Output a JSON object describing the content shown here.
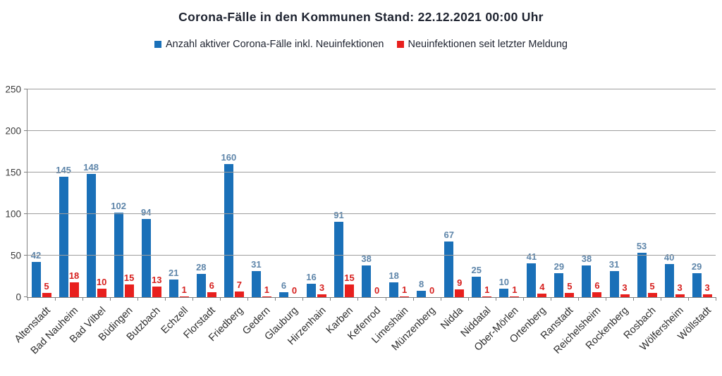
{
  "title": "Corona-Fälle in den Kommunen Stand: 22.12.2021 00:00 Uhr",
  "colors": {
    "active_cases_bar": "#1a70b8",
    "active_cases_label": "#5f86aa",
    "new_infections_bar": "#e8201e",
    "new_infections_label": "#d6201e",
    "gridline": "#9e9e9e",
    "axis": "#808080",
    "title_text": "#1e2330"
  },
  "chart_data": {
    "type": "bar",
    "title": "Corona-Fälle in den Kommunen Stand: 22.12.2021 00:00 Uhr",
    "xlabel": "",
    "ylabel": "",
    "ylim": [
      0,
      250
    ],
    "yticks": [
      0,
      50,
      100,
      150,
      200,
      250
    ],
    "grid": true,
    "legend_position": "top",
    "categories": [
      "Altenstadt",
      "Bad Nauheim",
      "Bad Vilbel",
      "Büdingen",
      "Butzbach",
      "Echzell",
      "Florstadt",
      "Friedberg",
      "Gedern",
      "Glauburg",
      "Hirzenhain",
      "Karben",
      "Kefenrod",
      "Limeshain",
      "Münzenberg",
      "Nidda",
      "Niddatal",
      "Ober-Mörlen",
      "Ortenberg",
      "Ranstadt",
      "Reichelsheim",
      "Rockenberg",
      "Rosbach",
      "Wölfersheim",
      "Wöllstadt"
    ],
    "series": [
      {
        "name": "Anzahl aktiver Corona-Fälle inkl. Neuinfektionen",
        "color": "#1a70b8",
        "label_color": "#5f86aa",
        "values": [
          42,
          145,
          148,
          102,
          94,
          21,
          28,
          160,
          31,
          6,
          16,
          91,
          38,
          18,
          8,
          67,
          25,
          10,
          41,
          29,
          38,
          31,
          53,
          40,
          29
        ]
      },
      {
        "name": "Neuinfektionen seit letzter Meldung",
        "color": "#e8201e",
        "label_color": "#d6201e",
        "values": [
          5,
          18,
          10,
          15,
          13,
          1,
          6,
          7,
          1,
          0,
          3,
          15,
          0,
          1,
          0,
          9,
          1,
          1,
          4,
          5,
          6,
          3,
          5,
          3,
          3
        ]
      }
    ]
  }
}
